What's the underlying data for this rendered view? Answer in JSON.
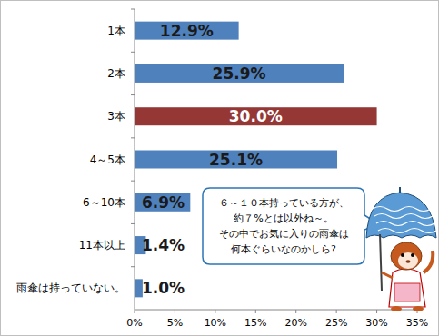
{
  "chart_data": {
    "type": "bar",
    "orientation": "horizontal",
    "categories": [
      "1本",
      "2本",
      "3本",
      "4～5本",
      "6～10本",
      "11本以上",
      "雨傘は持っていない。"
    ],
    "values": [
      12.9,
      25.9,
      30.0,
      25.1,
      6.9,
      1.4,
      1.0
    ],
    "value_labels": [
      "12.9%",
      "25.9%",
      "30.0%",
      "25.1%",
      "6.9%",
      "1.4%",
      "1.0%"
    ],
    "colors": [
      "#4f81bd",
      "#4f81bd",
      "#953735",
      "#4f81bd",
      "#4f81bd",
      "#4f81bd",
      "#4f81bd"
    ],
    "xlim": [
      0,
      35
    ],
    "xticks": [
      {
        "value": 0,
        "label": "0%"
      },
      {
        "value": 5,
        "label": "5%"
      },
      {
        "value": 10,
        "label": "10%"
      },
      {
        "value": 15,
        "label": "15%"
      },
      {
        "value": 20,
        "label": "20%"
      },
      {
        "value": 25,
        "label": "25%"
      },
      {
        "value": 30,
        "label": "30%"
      },
      {
        "value": 35,
        "label": "35%"
      }
    ],
    "grid": false,
    "data_labels": true,
    "annotation": [
      "６～１０本持っている方が、",
      "約７%とは以外ね～。",
      "その中でお気に入りの雨傘は",
      "何本ぐらいなのかしら?"
    ]
  }
}
